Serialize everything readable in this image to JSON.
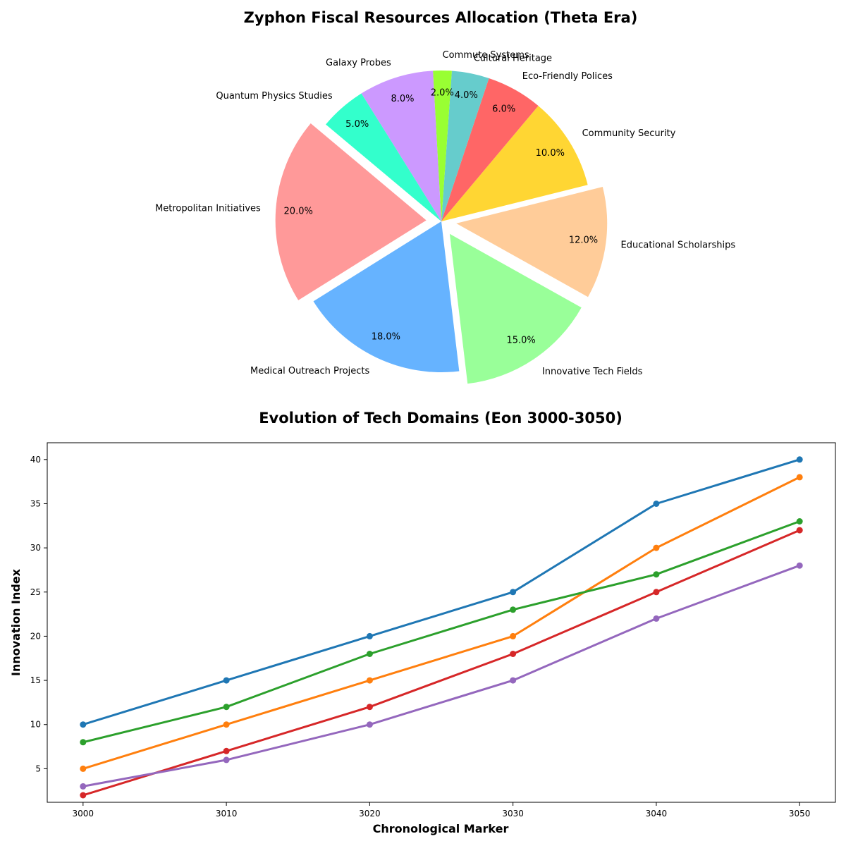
{
  "chart_data": [
    {
      "type": "pie",
      "title": "Zyphon Fiscal Resources Allocation (Theta Era)",
      "start_angle_deg": 140,
      "direction": "counterclockwise",
      "slices": [
        {
          "label": "Metropolitan Initiatives",
          "value": 20,
          "pct_label": "20.0%",
          "color": "#ff9999",
          "exploded": true
        },
        {
          "label": "Medical Outreach Projects",
          "value": 18,
          "pct_label": "18.0%",
          "color": "#66b3ff",
          "exploded": false
        },
        {
          "label": "Innovative Tech Fields",
          "value": 15,
          "pct_label": "15.0%",
          "color": "#99ff99",
          "exploded": true
        },
        {
          "label": "Educational Scholarships",
          "value": 12,
          "pct_label": "12.0%",
          "color": "#ffcc99",
          "exploded": true
        },
        {
          "label": "Community Security",
          "value": 10,
          "pct_label": "10.0%",
          "color": "#ffd633",
          "exploded": false
        },
        {
          "label": "Eco-Friendly Polices",
          "value": 6,
          "pct_label": "6.0%",
          "color": "#ff6666",
          "exploded": false
        },
        {
          "label": "Cultural Heritage",
          "value": 4,
          "pct_label": "4.0%",
          "color": "#66cccc",
          "exploded": false
        },
        {
          "label": "Commute Systems",
          "value": 2,
          "pct_label": "2.0%",
          "color": "#99ff33",
          "exploded": false
        },
        {
          "label": "Galaxy Probes",
          "value": 8,
          "pct_label": "8.0%",
          "color": "#cc99ff",
          "exploded": false
        },
        {
          "label": "Quantum Physics Studies",
          "value": 5,
          "pct_label": "5.0%",
          "color": "#33ffcc",
          "exploded": false
        }
      ]
    },
    {
      "type": "line",
      "title": "Evolution of Tech Domains (Eon 3000-3050)",
      "xlabel": "Chronological Marker",
      "ylabel": "Innovation Index",
      "x": [
        3000,
        3010,
        3020,
        3030,
        3040,
        3050
      ],
      "xlim": [
        2997.5,
        3052.5
      ],
      "ylim": [
        1.2,
        41.9
      ],
      "yticks": [
        5,
        10,
        15,
        20,
        25,
        30,
        35,
        40
      ],
      "grid": false,
      "series": [
        {
          "color": "#1f77b4",
          "values": [
            10,
            15,
            20,
            25,
            35,
            40
          ]
        },
        {
          "color": "#ff7f0e",
          "values": [
            5,
            10,
            15,
            20,
            30,
            38
          ]
        },
        {
          "color": "#2ca02c",
          "values": [
            8,
            12,
            18,
            23,
            27,
            33
          ]
        },
        {
          "color": "#d62728",
          "values": [
            2,
            7,
            12,
            18,
            25,
            32
          ]
        },
        {
          "color": "#9467bd",
          "values": [
            3,
            6,
            10,
            15,
            22,
            28
          ]
        }
      ]
    }
  ]
}
